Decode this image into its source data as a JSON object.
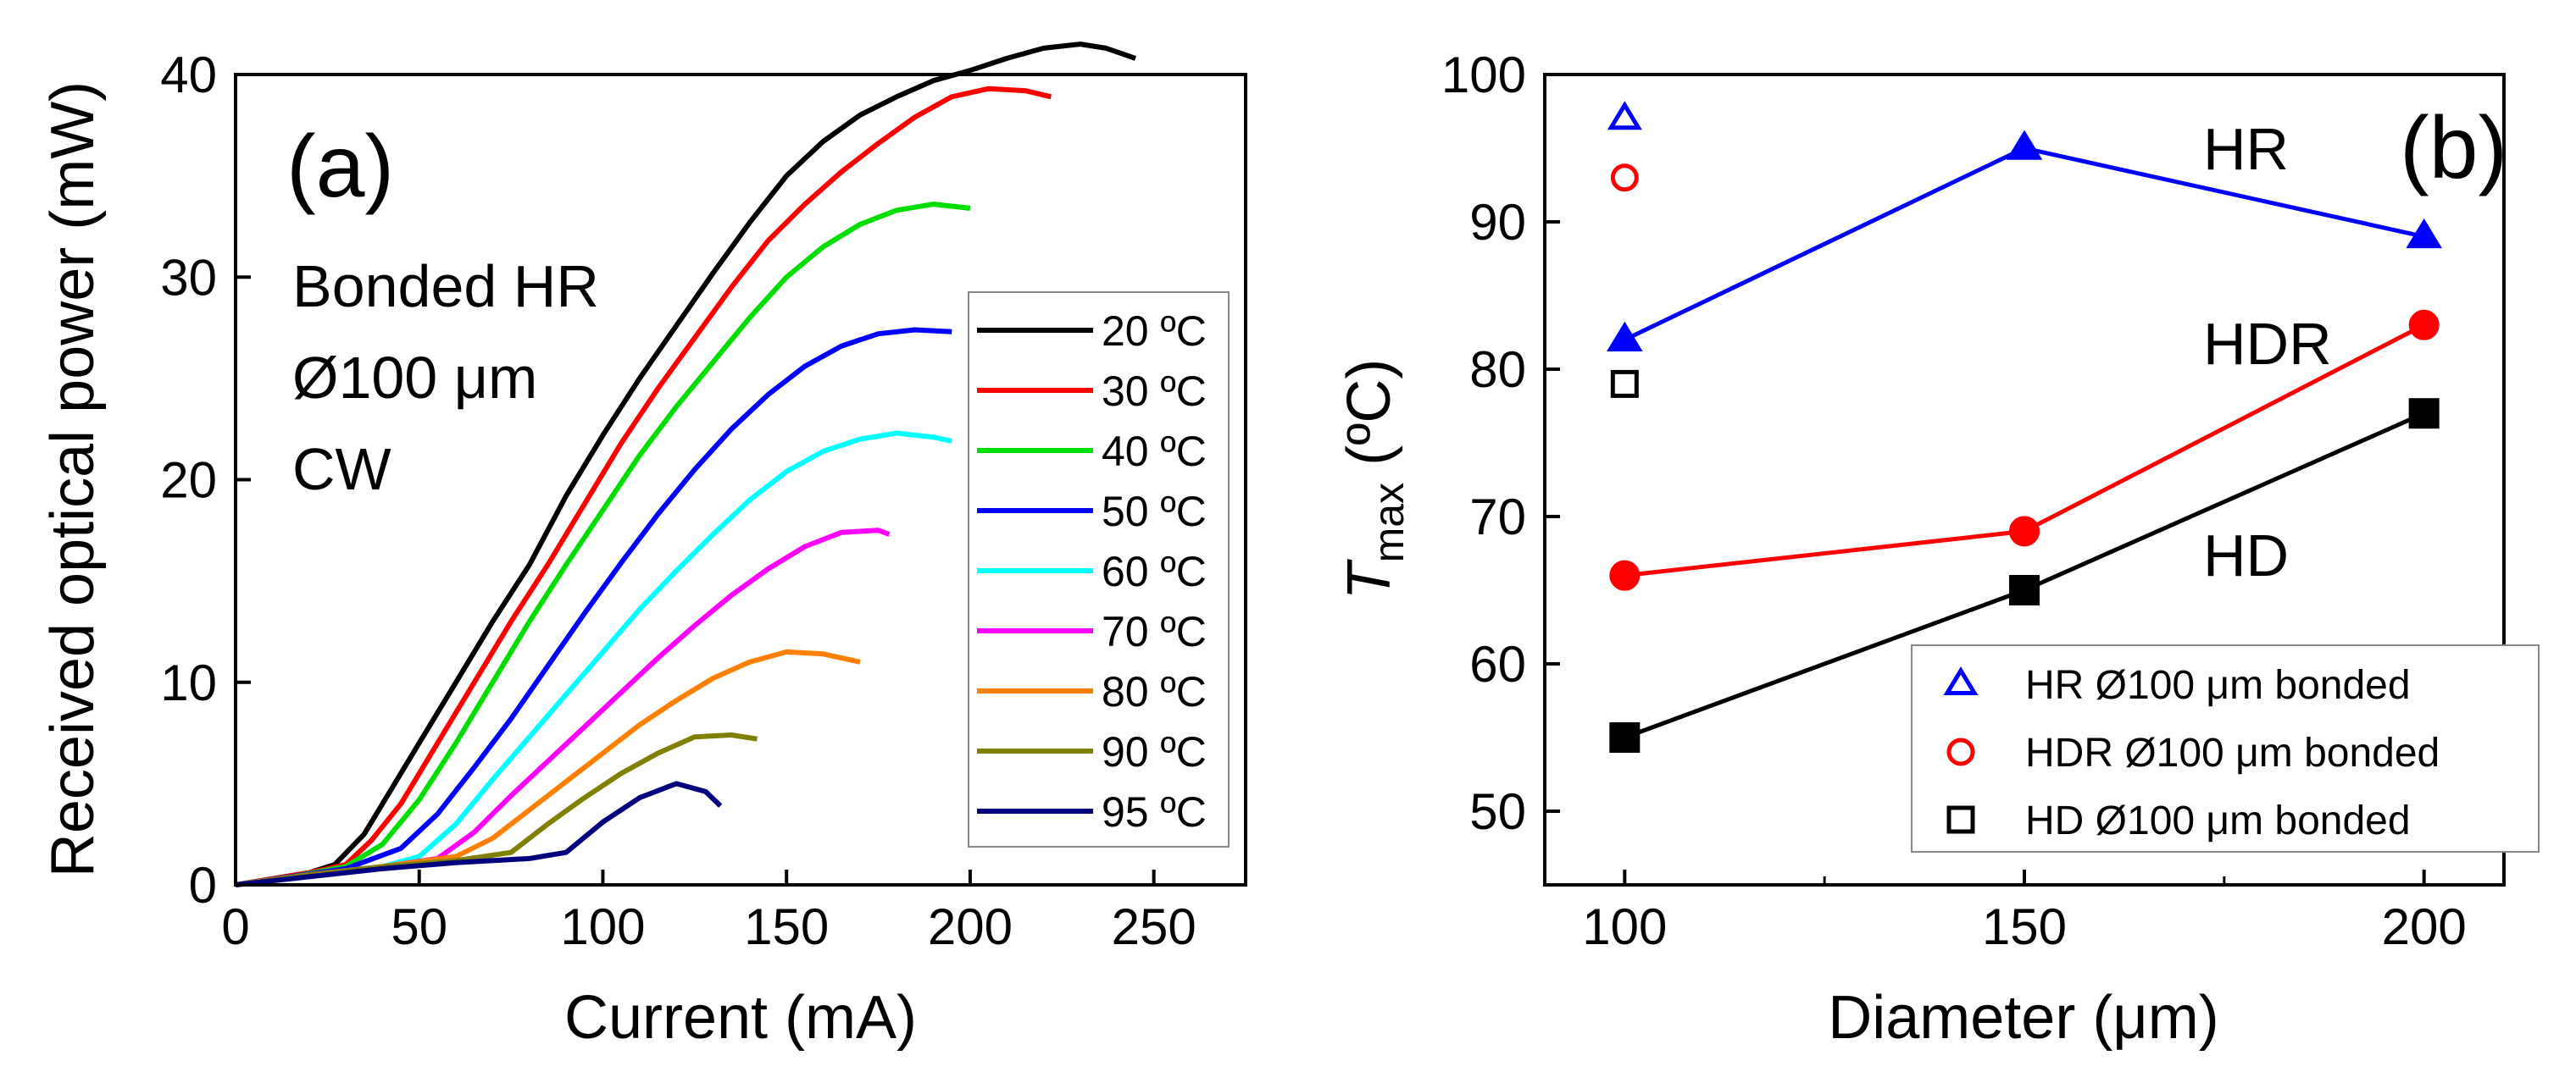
{
  "chart_data": [
    {
      "type": "line",
      "panel_label": "(a)",
      "xlabel": "Current (mA)",
      "ylabel": "Received optical power (mW)",
      "xlim": [
        0,
        275
      ],
      "ylim": [
        0,
        40
      ],
      "xticks": [
        0,
        50,
        100,
        150,
        200,
        250
      ],
      "yticks": [
        0,
        10,
        20,
        30,
        40
      ],
      "annotations": [
        "Bonded HR",
        "Ø100 μm",
        "CW"
      ],
      "legend_position": "right",
      "series": [
        {
          "name": "20 ºC",
          "color": "#000000",
          "x": [
            0,
            10,
            20,
            27,
            35,
            40,
            50,
            60,
            70,
            80,
            90,
            100,
            110,
            120,
            130,
            140,
            150,
            160,
            170,
            180,
            190,
            200,
            210,
            220,
            230,
            237,
            245
          ],
          "y": [
            0,
            0.3,
            0.6,
            1,
            2.5,
            4,
            7,
            10,
            13,
            15.8,
            19.2,
            22.2,
            25,
            27.6,
            30.2,
            32.7,
            35,
            36.7,
            38,
            38.9,
            39.7,
            40.2,
            40.8,
            41.3,
            41.5,
            41.3,
            40.8
          ]
        },
        {
          "name": "30 ºC",
          "color": "#ff0000",
          "x": [
            0,
            10,
            20,
            30,
            37,
            45,
            55,
            65,
            75,
            85,
            95,
            105,
            115,
            125,
            135,
            145,
            155,
            165,
            175,
            185,
            195,
            205,
            215,
            222
          ],
          "y": [
            0,
            0.3,
            0.6,
            1,
            2.2,
            4,
            7,
            10,
            13,
            15.8,
            18.8,
            21.8,
            24.5,
            27,
            29.5,
            31.8,
            33.6,
            35.2,
            36.6,
            37.9,
            38.9,
            39.3,
            39.2,
            38.9
          ]
        },
        {
          "name": "40 ºC",
          "color": "#00dd00",
          "x": [
            0,
            15,
            30,
            40,
            50,
            60,
            70,
            80,
            90,
            100,
            110,
            120,
            130,
            140,
            150,
            160,
            170,
            180,
            190,
            200
          ],
          "y": [
            0,
            0.4,
            0.9,
            2,
            4.2,
            7,
            10,
            13,
            15.8,
            18.5,
            21.2,
            23.6,
            25.8,
            28,
            30,
            31.5,
            32.6,
            33.3,
            33.6,
            33.4
          ]
        },
        {
          "name": "50 ºC",
          "color": "#0000ff",
          "x": [
            0,
            15,
            30,
            45,
            55,
            65,
            75,
            85,
            95,
            105,
            115,
            125,
            135,
            145,
            155,
            165,
            175,
            185,
            195
          ],
          "y": [
            0,
            0.4,
            0.8,
            1.8,
            3.5,
            5.8,
            8.2,
            10.8,
            13.4,
            15.9,
            18.3,
            20.5,
            22.5,
            24.2,
            25.6,
            26.6,
            27.2,
            27.4,
            27.3
          ]
        },
        {
          "name": "60 ºC",
          "color": "#00ffff",
          "x": [
            0,
            20,
            40,
            50,
            60,
            70,
            80,
            90,
            100,
            110,
            120,
            130,
            140,
            150,
            160,
            170,
            180,
            190,
            195
          ],
          "y": [
            0,
            0.5,
            0.9,
            1.4,
            3,
            5.2,
            7.3,
            9.4,
            11.5,
            13.6,
            15.5,
            17.3,
            19,
            20.4,
            21.4,
            22,
            22.3,
            22.1,
            21.9
          ]
        },
        {
          "name": "70 ºC",
          "color": "#ff00ff",
          "x": [
            0,
            20,
            40,
            55,
            65,
            75,
            85,
            95,
            105,
            115,
            125,
            135,
            145,
            155,
            165,
            175,
            178
          ],
          "y": [
            0,
            0.5,
            0.9,
            1.3,
            2.6,
            4.4,
            6.1,
            7.8,
            9.5,
            11.2,
            12.8,
            14.3,
            15.6,
            16.7,
            17.4,
            17.5,
            17.3
          ]
        },
        {
          "name": "80 ºC",
          "color": "#ff8000",
          "x": [
            0,
            20,
            40,
            60,
            70,
            80,
            90,
            100,
            110,
            120,
            130,
            140,
            150,
            160,
            170
          ],
          "y": [
            0,
            0.5,
            0.9,
            1.4,
            2.3,
            3.7,
            5.1,
            6.5,
            7.9,
            9.1,
            10.2,
            11,
            11.5,
            11.4,
            11
          ]
        },
        {
          "name": "90 ºC",
          "color": "#808000",
          "x": [
            0,
            20,
            40,
            60,
            75,
            85,
            95,
            105,
            115,
            125,
            135,
            142
          ],
          "y": [
            0,
            0.5,
            0.9,
            1.2,
            1.6,
            3,
            4.3,
            5.5,
            6.5,
            7.3,
            7.4,
            7.2
          ]
        },
        {
          "name": "95 ºC",
          "color": "#00007f",
          "x": [
            0,
            20,
            40,
            60,
            80,
            90,
            100,
            110,
            120,
            128,
            132
          ],
          "y": [
            0,
            0.4,
            0.8,
            1.1,
            1.3,
            1.6,
            3.1,
            4.3,
            5,
            4.6,
            3.9
          ]
        }
      ]
    },
    {
      "type": "scatter",
      "panel_label": "(b)",
      "xlabel": "Diameter (μm)",
      "ylabel_main": "T",
      "ylabel_sub": "max",
      "ylabel_rest": " (ºC)",
      "xlim": [
        90,
        210
      ],
      "ylim": [
        45,
        100
      ],
      "xticks": [
        100,
        150,
        200
      ],
      "yticks": [
        50,
        60,
        70,
        80,
        90,
        100
      ],
      "labels": [
        "HR",
        "HDR",
        "HD"
      ],
      "legend_position": "bottom-right",
      "series": [
        {
          "name": "HR",
          "color": "#0000ff",
          "marker": "triangle-filled",
          "x": [
            100,
            150,
            200
          ],
          "y": [
            82,
            95,
            89
          ]
        },
        {
          "name": "HDR",
          "color": "#ff0000",
          "marker": "circle-filled",
          "x": [
            100,
            150,
            200
          ],
          "y": [
            66,
            69,
            83
          ]
        },
        {
          "name": "HD",
          "color": "#000000",
          "marker": "square-filled",
          "x": [
            100,
            150,
            200
          ],
          "y": [
            55,
            65,
            77
          ]
        },
        {
          "name": "HR Ø100 μm bonded",
          "color": "#0000ff",
          "marker": "triangle-open",
          "x": [
            100
          ],
          "y": [
            97
          ]
        },
        {
          "name": "HDR Ø100 μm bonded",
          "color": "#ff0000",
          "marker": "circle-open",
          "x": [
            100
          ],
          "y": [
            93
          ]
        },
        {
          "name": "HD Ø100 μm bonded",
          "color": "#000000",
          "marker": "square-open",
          "x": [
            100
          ],
          "y": [
            79
          ]
        }
      ],
      "legend": [
        "HR Ø100 μm bonded",
        "HDR Ø100 μm bonded",
        "HD Ø100 μm bonded"
      ]
    }
  ]
}
